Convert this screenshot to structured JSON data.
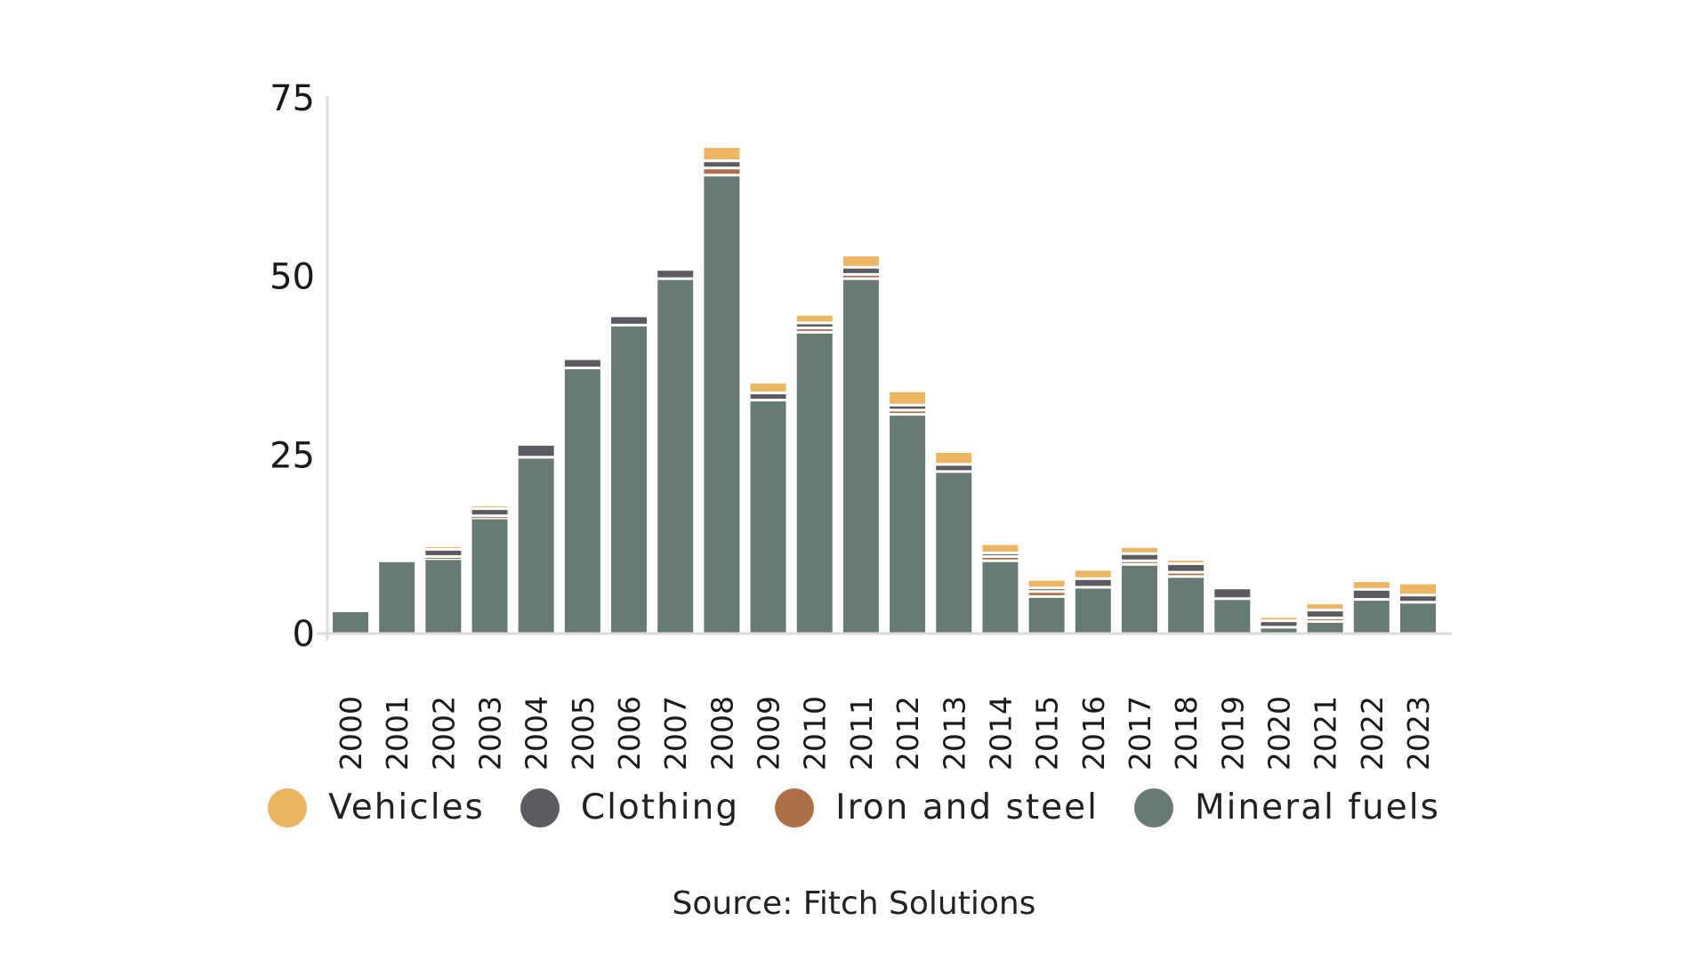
{
  "chart_data": {
    "type": "bar",
    "stacked": true,
    "title": "",
    "xlabel": "",
    "ylabel": "",
    "ylim": [
      0,
      75
    ],
    "yticks": [
      0,
      25,
      50,
      75
    ],
    "grid": false,
    "legend_position": "bottom",
    "categories": [
      "2000",
      "2001",
      "2002",
      "2003",
      "2004",
      "2005",
      "2006",
      "2007",
      "2008",
      "2009",
      "2010",
      "2011",
      "2012",
      "2013",
      "2014",
      "2015",
      "2016",
      "2017",
      "2018",
      "2019",
      "2020",
      "2021",
      "2022",
      "2023"
    ],
    "series": [
      {
        "name": "Mineral fuels",
        "color": "#687b72",
        "values": [
          3,
          10,
          10.3,
          16,
          24.5,
          37,
          43,
          49.5,
          64,
          32.5,
          42,
          49.5,
          30.5,
          22.5,
          10,
          5,
          6.3,
          9.5,
          7.8,
          4.7,
          0.7,
          1.5,
          4.6,
          4.2
        ]
      },
      {
        "name": "Iron and steel",
        "color": "#ad6f48",
        "values": [
          0,
          0,
          0.3,
          0.3,
          0,
          0,
          0,
          0,
          1,
          0,
          0.6,
          0.6,
          0.6,
          0,
          0.6,
          0.7,
          0,
          0.5,
          0.6,
          0,
          0,
          0.5,
          0,
          0
        ]
      },
      {
        "name": "Clothing",
        "color": "#5b5b61",
        "values": [
          0,
          0,
          1,
          1,
          1.8,
          1.3,
          1.3,
          1.3,
          1,
          1,
          0.7,
          1,
          0.7,
          1,
          0.5,
          0.5,
          1.2,
          1,
          1.2,
          1.5,
          0.9,
          1.1,
          1.4,
          1
        ]
      },
      {
        "name": "Vehicles",
        "color": "#ecb562",
        "values": [
          0,
          0,
          0.5,
          0.5,
          0,
          0,
          0,
          0,
          2,
          1.5,
          1.2,
          1.7,
          2,
          1.8,
          1.3,
          1.2,
          1.3,
          1,
          0.6,
          0,
          0.6,
          1,
          1.2,
          1.7
        ]
      }
    ]
  },
  "legend": [
    {
      "label": "Vehicles",
      "color": "#ecb562"
    },
    {
      "label": "Clothing",
      "color": "#5b5b61"
    },
    {
      "label": "Iron and steel",
      "color": "#ad6f48"
    },
    {
      "label": "Mineral fuels",
      "color": "#687b72"
    }
  ],
  "source": "Source: Fitch Solutions"
}
